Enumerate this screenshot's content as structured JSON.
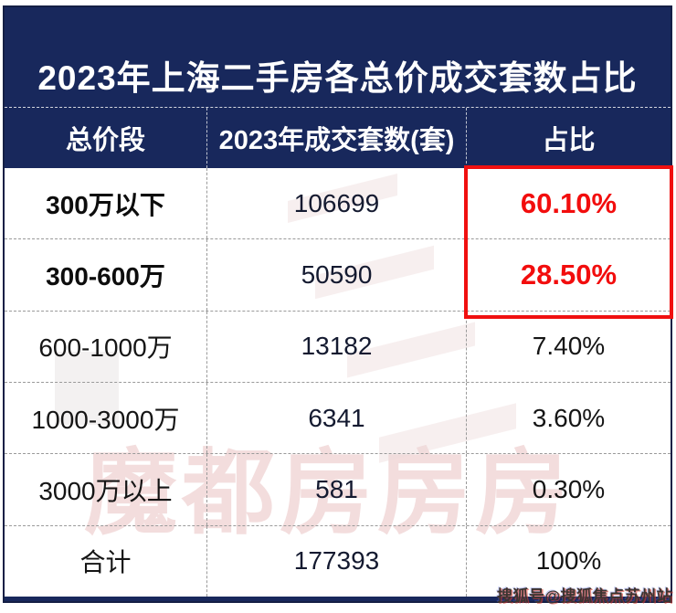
{
  "banner": {
    "title": "2023年上海二手房各总价成交套数占比"
  },
  "table": {
    "headers": [
      "总价段",
      "2023年成交套数(套)",
      "占比"
    ],
    "rows": [
      {
        "range": "300万以下",
        "count": "106699",
        "share": "60.10%"
      },
      {
        "range": "300-600万",
        "count": "50590",
        "share": "28.50%"
      },
      {
        "range": "600-1000万",
        "count": "13182",
        "share": "7.40%"
      },
      {
        "range": "1000-3000万",
        "count": "6341",
        "share": "3.60%"
      },
      {
        "range": "3000万以上",
        "count": "581",
        "share": "0.30%"
      },
      {
        "range": "合计",
        "count": "177393",
        "share": "100%"
      }
    ]
  },
  "watermarks": {
    "center_text": "魔都房房房",
    "source_credit": "搜狐号@搜狐焦点苏州站"
  },
  "colors": {
    "navy": "#18285C",
    "highlight_red": "#F01010",
    "text_dark": "#151515",
    "watermark_pink": "#E7BBBB"
  },
  "chart_data": {
    "type": "table",
    "title": "2023年上海二手房各总价成交套数占比",
    "columns": [
      "总价段",
      "2023年成交套数(套)",
      "占比"
    ],
    "categories": [
      "300万以下",
      "300-600万",
      "600-1000万",
      "1000-3000万",
      "3000万以上",
      "合计"
    ],
    "series": [
      {
        "name": "2023年成交套数(套)",
        "values": [
          106699,
          50590,
          13182,
          6341,
          581,
          177393
        ]
      },
      {
        "name": "占比",
        "values": [
          "60.10%",
          "28.50%",
          "7.40%",
          "3.60%",
          "0.30%",
          "100%"
        ]
      }
    ],
    "highlighted_categories": [
      "300万以下",
      "300-600万"
    ],
    "layout_hints": {
      "highlight_box": "red border around 占比 values of first two rows",
      "header_fill": "#18285C"
    }
  }
}
